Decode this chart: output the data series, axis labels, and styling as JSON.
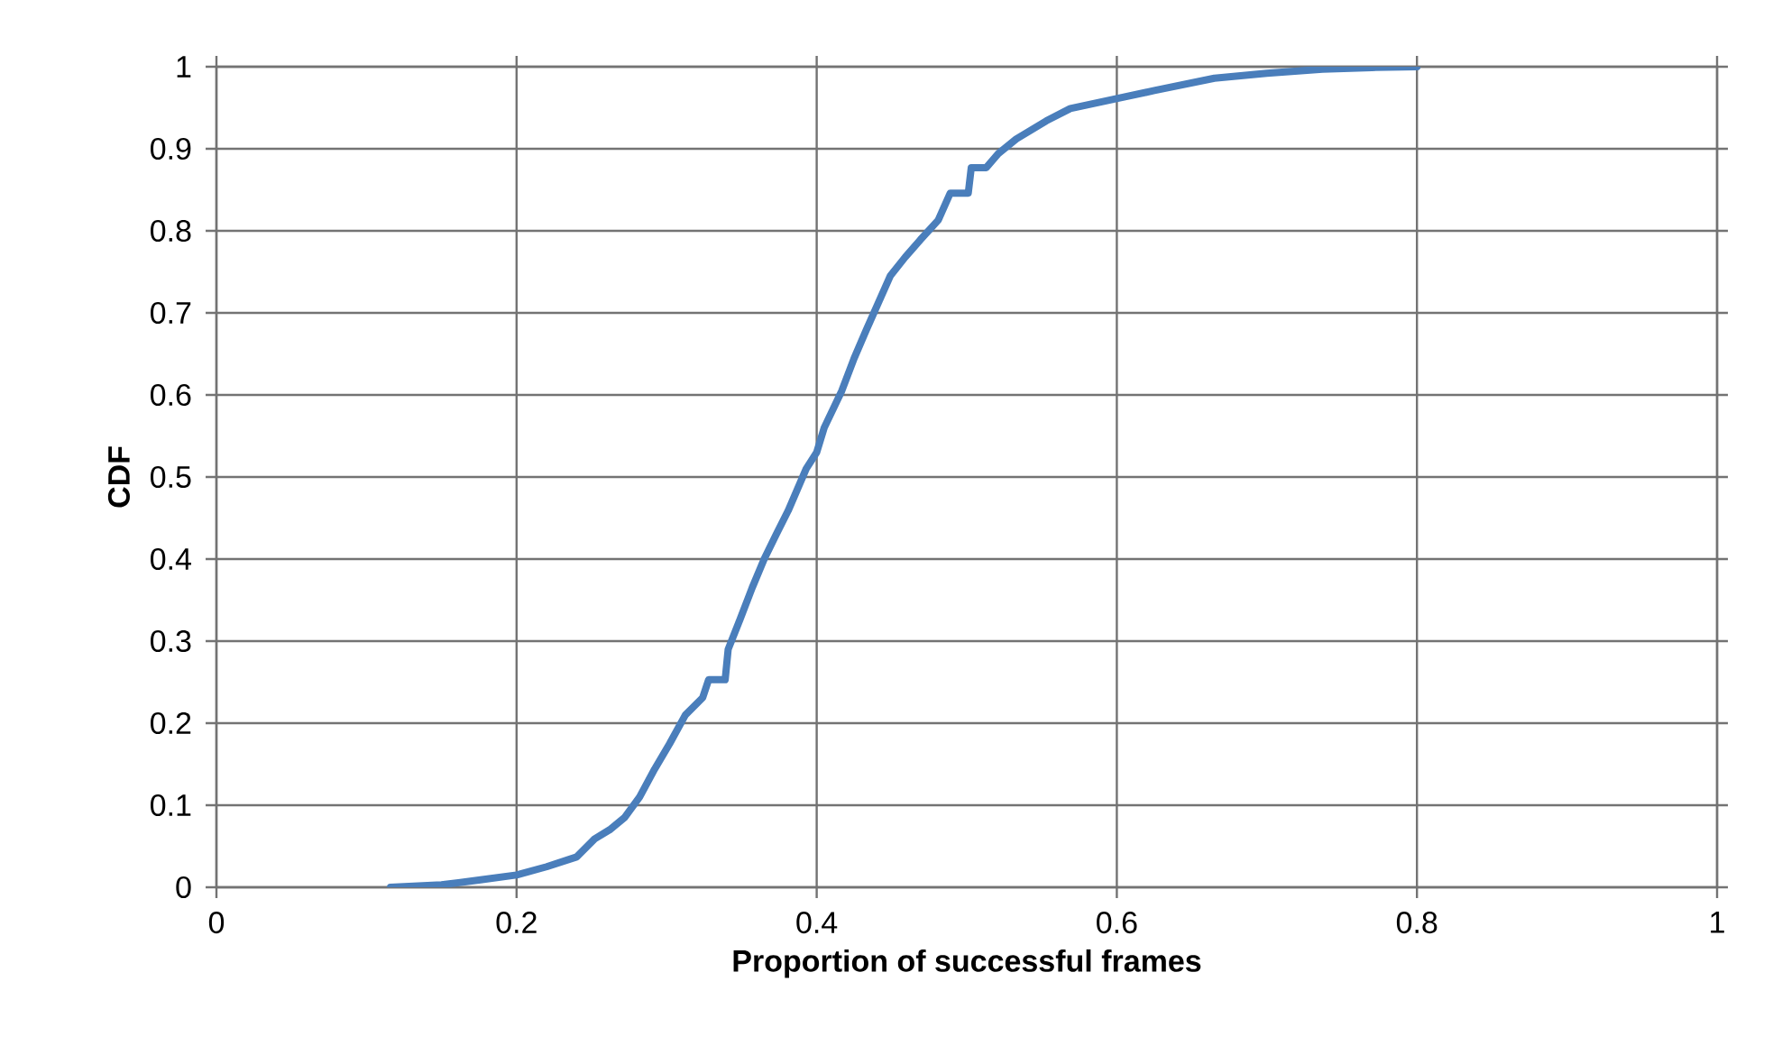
{
  "chart_data": {
    "type": "line",
    "xlabel": "Proportion of successful frames",
    "ylabel": "CDF",
    "xlim": [
      0,
      1
    ],
    "ylim": [
      0,
      1
    ],
    "xticks": [
      0,
      0.2,
      0.4,
      0.6,
      0.8,
      1
    ],
    "yticks": [
      0,
      0.1,
      0.2,
      0.3,
      0.4,
      0.5,
      0.6,
      0.7,
      0.8,
      0.9,
      1
    ],
    "grid": true,
    "marker": "none",
    "line_style": "solid",
    "series": [
      {
        "color": "#4a7ebb",
        "x": [
          0.116,
          0.15,
          0.176,
          0.2,
          0.22,
          0.24,
          0.252,
          0.262,
          0.272,
          0.282,
          0.292,
          0.302,
          0.3125,
          0.324,
          0.328,
          0.339,
          0.341,
          0.349,
          0.357,
          0.365,
          0.373,
          0.381,
          0.393,
          0.4,
          0.405,
          0.4167,
          0.425,
          0.433,
          0.441,
          0.449,
          0.459,
          0.469,
          0.481,
          0.489,
          0.501,
          0.503,
          0.513,
          0.521,
          0.533,
          0.553,
          0.569,
          0.597,
          0.625,
          0.665,
          0.7,
          0.737,
          0.77,
          0.8
        ],
        "values": [
          0.0,
          0.003,
          0.009,
          0.015,
          0.025,
          0.037,
          0.059,
          0.07,
          0.085,
          0.11,
          0.144,
          0.175,
          0.21,
          0.231,
          0.253,
          0.253,
          0.29,
          0.327,
          0.365,
          0.4,
          0.43,
          0.459,
          0.51,
          0.53,
          0.56,
          0.605,
          0.645,
          0.679,
          0.712,
          0.745,
          0.768,
          0.789,
          0.813,
          0.846,
          0.846,
          0.877,
          0.877,
          0.894,
          0.912,
          0.934,
          0.949,
          0.96,
          0.971,
          0.986,
          0.992,
          0.997,
          0.999,
          1.0
        ]
      }
    ]
  }
}
